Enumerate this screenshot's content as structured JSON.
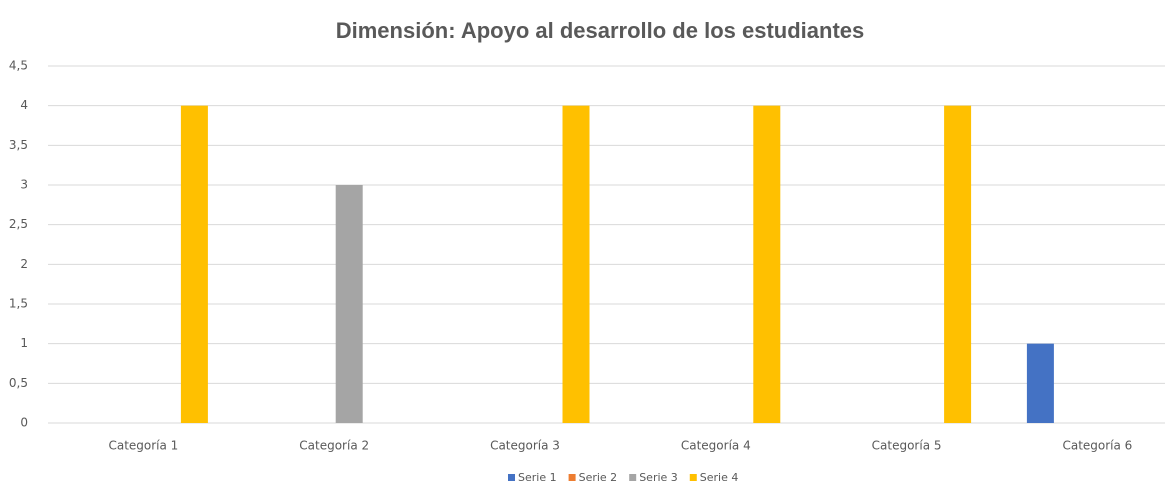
{
  "chart_data": {
    "type": "bar",
    "title": "Dimensión: Apoyo al desarrollo de los estudiantes",
    "categories": [
      "Categoría 1",
      "Categoría 2",
      "Categoría 3",
      "Categoría 4",
      "Categoría 5",
      "Categoría 6"
    ],
    "series": [
      {
        "name": "Serie 1",
        "color": "#4472c4",
        "values": [
          0,
          0,
          0,
          0,
          0,
          1
        ]
      },
      {
        "name": "Serie 2",
        "color": "#ed7d31",
        "values": [
          0,
          0,
          0,
          0,
          0,
          0
        ]
      },
      {
        "name": "Serie 3",
        "color": "#a5a5a5",
        "values": [
          0,
          3,
          0,
          0,
          0,
          0
        ]
      },
      {
        "name": "Serie 4",
        "color": "#ffc000",
        "values": [
          4,
          0,
          4,
          4,
          4,
          0
        ]
      }
    ],
    "ylim": [
      0,
      4.5
    ],
    "yticks": [
      0,
      {
        "value": 0.5,
        "label": "0,5"
      },
      1,
      {
        "value": 1.5,
        "label": "1,5"
      },
      2,
      {
        "value": 2.5,
        "label": "2,5"
      },
      3,
      {
        "value": 3.5,
        "label": "3,5"
      },
      4,
      {
        "value": 4.5,
        "label": "4,5"
      }
    ],
    "grid": true,
    "legend": "bottom"
  }
}
